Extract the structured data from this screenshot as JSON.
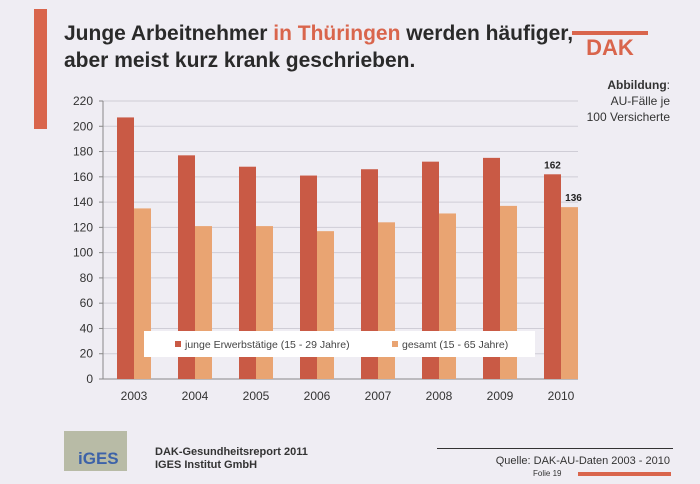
{
  "title": {
    "part1": "Junge Arbeitnehmer ",
    "highlight": "in Thüringen",
    "part2": " werden häufiger,",
    "line2": "aber meist kurz krank geschrieben."
  },
  "logo": {
    "text": "DAK",
    "color": "#d9654c"
  },
  "caption": {
    "label": "Abbildung",
    "colon": ":",
    "line2": "AU-Fälle je",
    "line3": "100 Versicherte"
  },
  "footer": {
    "iges_logo": "iGES",
    "report": "DAK-Gesundheitsreport 2011",
    "institute": "IGES Institut GmbH",
    "source": "Quelle: DAK-AU-Daten 2003 - 2010",
    "slide": "Folie 19"
  },
  "chart_data": {
    "type": "bar",
    "categories": [
      "2003",
      "2004",
      "2005",
      "2006",
      "2007",
      "2008",
      "2009",
      "2010"
    ],
    "series": [
      {
        "name": "junge Erwerbstätige  (15 - 29 Jahre)",
        "values": [
          207,
          177,
          168,
          161,
          166,
          172,
          175,
          162
        ],
        "color": "#c95a45"
      },
      {
        "name": "gesamt (15 - 65 Jahre)",
        "values": [
          135,
          121,
          121,
          117,
          124,
          131,
          137,
          136
        ],
        "color": "#e9a472"
      }
    ],
    "data_labels": [
      {
        "category": "2010",
        "series": 0,
        "text": "162"
      },
      {
        "category": "2010",
        "series": 1,
        "text": "136"
      }
    ],
    "ylim": [
      0,
      220
    ],
    "yticks": [
      0,
      20,
      40,
      60,
      80,
      100,
      120,
      140,
      160,
      180,
      200,
      220
    ],
    "grid": true,
    "legend": "bottom-inside"
  }
}
